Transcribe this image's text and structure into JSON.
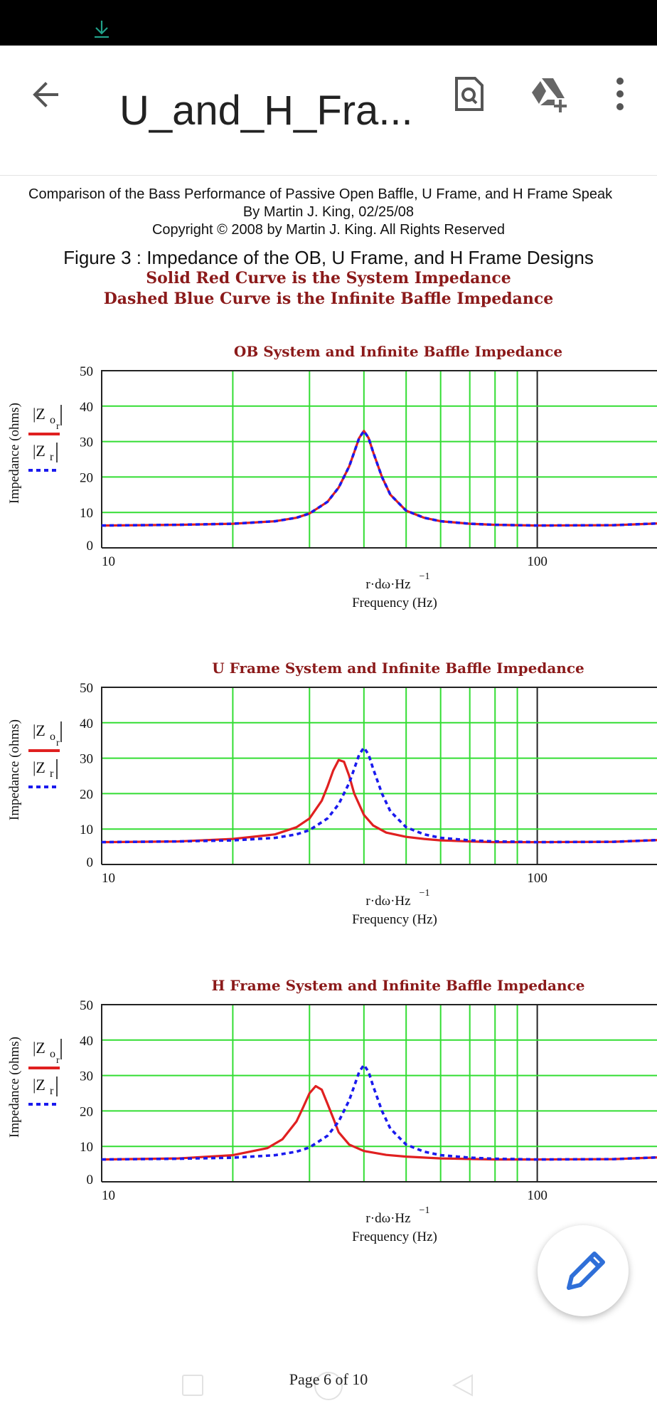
{
  "app_bar": {
    "title": "U_and_H_Fra...",
    "icons": [
      "back-arrow-icon",
      "search-document-icon",
      "add-to-drive-icon",
      "more-vert-icon"
    ]
  },
  "document": {
    "header_line1": "Comparison of the Bass Performance of Passive Open Baffle, U Frame, and H Frame Speak",
    "header_line2": "By Martin J. King, 02/25/08",
    "header_line3": "Copyright © 2008 by Martin J. King. All Rights Reserved",
    "figure_title": "Figure 3 : Impedance of the OB, U Frame, and H Frame Designs",
    "legend_line1": "Solid Red Curve is the System Impedance",
    "legend_line2": "Dashed Blue Curve is the Infinite Baffle Impedance"
  },
  "colors": {
    "system": "#e02020",
    "infinite_baffle": "#1a1aee",
    "grid": "#33dd33",
    "title_red": "#8b1a1a"
  },
  "chart_labels": {
    "ylabel": "Impedance (ohms)",
    "xlabel_expr": "r·dω·Hz",
    "xlabel_exp": "−1",
    "xlabel": "Frequency (Hz)",
    "legend_top": "|Z",
    "legend_top_sub": "o",
    "legend_top_subsub": "r",
    "legend_bottom": "|Z",
    "legend_bottom_sub": "r"
  },
  "chart_data": [
    {
      "type": "line",
      "title": "OB System and Infinite Baffle Impedance",
      "xscale": "log",
      "xlim": [
        10,
        200
      ],
      "ylim": [
        0,
        50
      ],
      "yticks": [
        0,
        10,
        20,
        30,
        40,
        50
      ],
      "xticks": [
        10,
        100
      ],
      "grid": true,
      "series": [
        {
          "style": "solid",
          "color": "#e02020",
          "x": [
            10,
            15,
            20,
            25,
            28,
            30,
            33,
            35,
            37,
            38,
            39,
            40,
            41,
            42,
            44,
            46,
            50,
            55,
            60,
            70,
            80,
            100,
            150,
            200
          ],
          "y": [
            6.3,
            6.5,
            6.8,
            7.5,
            8.5,
            9.7,
            13,
            17,
            23,
            27,
            31,
            33,
            31,
            27,
            20,
            15,
            10.5,
            8.5,
            7.5,
            6.8,
            6.5,
            6.3,
            6.4,
            7
          ]
        },
        {
          "style": "dashed",
          "color": "#1a1aee",
          "x": [
            10,
            15,
            20,
            25,
            28,
            30,
            33,
            35,
            37,
            38,
            39,
            40,
            41,
            42,
            44,
            46,
            50,
            55,
            60,
            70,
            80,
            100,
            150,
            200
          ],
          "y": [
            6.3,
            6.5,
            6.8,
            7.5,
            8.5,
            9.7,
            13,
            17,
            23,
            27,
            31,
            33,
            31,
            27,
            20,
            15,
            10.5,
            8.5,
            7.5,
            6.8,
            6.5,
            6.3,
            6.4,
            7
          ]
        }
      ]
    },
    {
      "type": "line",
      "title": "U Frame System and Infinite Baffle Impedance",
      "xscale": "log",
      "xlim": [
        10,
        200
      ],
      "ylim": [
        0,
        50
      ],
      "yticks": [
        0,
        10,
        20,
        30,
        40,
        50
      ],
      "xticks": [
        10,
        100
      ],
      "grid": true,
      "series": [
        {
          "style": "solid",
          "color": "#e02020",
          "x": [
            10,
            15,
            20,
            25,
            28,
            30,
            32,
            33,
            34,
            35,
            36,
            37,
            38,
            40,
            42,
            45,
            50,
            55,
            60,
            70,
            80,
            100,
            150,
            200
          ],
          "y": [
            6.3,
            6.5,
            7.2,
            8.5,
            10.5,
            13,
            18,
            22,
            26.5,
            29.5,
            29,
            25,
            20,
            14,
            11,
            9,
            7.8,
            7.2,
            6.8,
            6.5,
            6.3,
            6.3,
            6.4,
            7
          ]
        },
        {
          "style": "dashed",
          "color": "#1a1aee",
          "x": [
            10,
            15,
            20,
            25,
            28,
            30,
            33,
            35,
            37,
            38,
            39,
            40,
            41,
            42,
            44,
            46,
            50,
            55,
            60,
            70,
            80,
            100,
            150,
            200
          ],
          "y": [
            6.3,
            6.5,
            6.8,
            7.5,
            8.5,
            9.7,
            13,
            17,
            23,
            27,
            31,
            33,
            31,
            27,
            20,
            15,
            10.5,
            8.5,
            7.5,
            6.8,
            6.5,
            6.3,
            6.4,
            7
          ]
        }
      ]
    },
    {
      "type": "line",
      "title": "H Frame System and Infinite Baffle Impedance",
      "xscale": "log",
      "xlim": [
        10,
        200
      ],
      "ylim": [
        0,
        50
      ],
      "yticks": [
        0,
        10,
        20,
        30,
        40,
        50
      ],
      "xticks": [
        10,
        100
      ],
      "grid": true,
      "series": [
        {
          "style": "solid",
          "color": "#e02020",
          "x": [
            10,
            15,
            20,
            24,
            26,
            28,
            29,
            30,
            31,
            32,
            33,
            34,
            35,
            37,
            40,
            45,
            50,
            60,
            80,
            100,
            150,
            200
          ],
          "y": [
            6.3,
            6.6,
            7.5,
            9.5,
            12,
            17,
            21,
            25,
            27,
            26,
            22,
            18,
            14,
            10.5,
            8.7,
            7.6,
            7.1,
            6.6,
            6.3,
            6.3,
            6.4,
            7
          ]
        },
        {
          "style": "dashed",
          "color": "#1a1aee",
          "x": [
            10,
            15,
            20,
            25,
            28,
            30,
            33,
            35,
            37,
            38,
            39,
            40,
            41,
            42,
            44,
            46,
            50,
            55,
            60,
            70,
            80,
            100,
            150,
            200
          ],
          "y": [
            6.3,
            6.5,
            6.8,
            7.5,
            8.5,
            9.7,
            13,
            17,
            23,
            27,
            31,
            33,
            31,
            27,
            20,
            15,
            10.5,
            8.5,
            7.5,
            6.8,
            6.5,
            6.3,
            6.4,
            7
          ]
        }
      ]
    }
  ],
  "page_indicator": "Page 6 of 10"
}
